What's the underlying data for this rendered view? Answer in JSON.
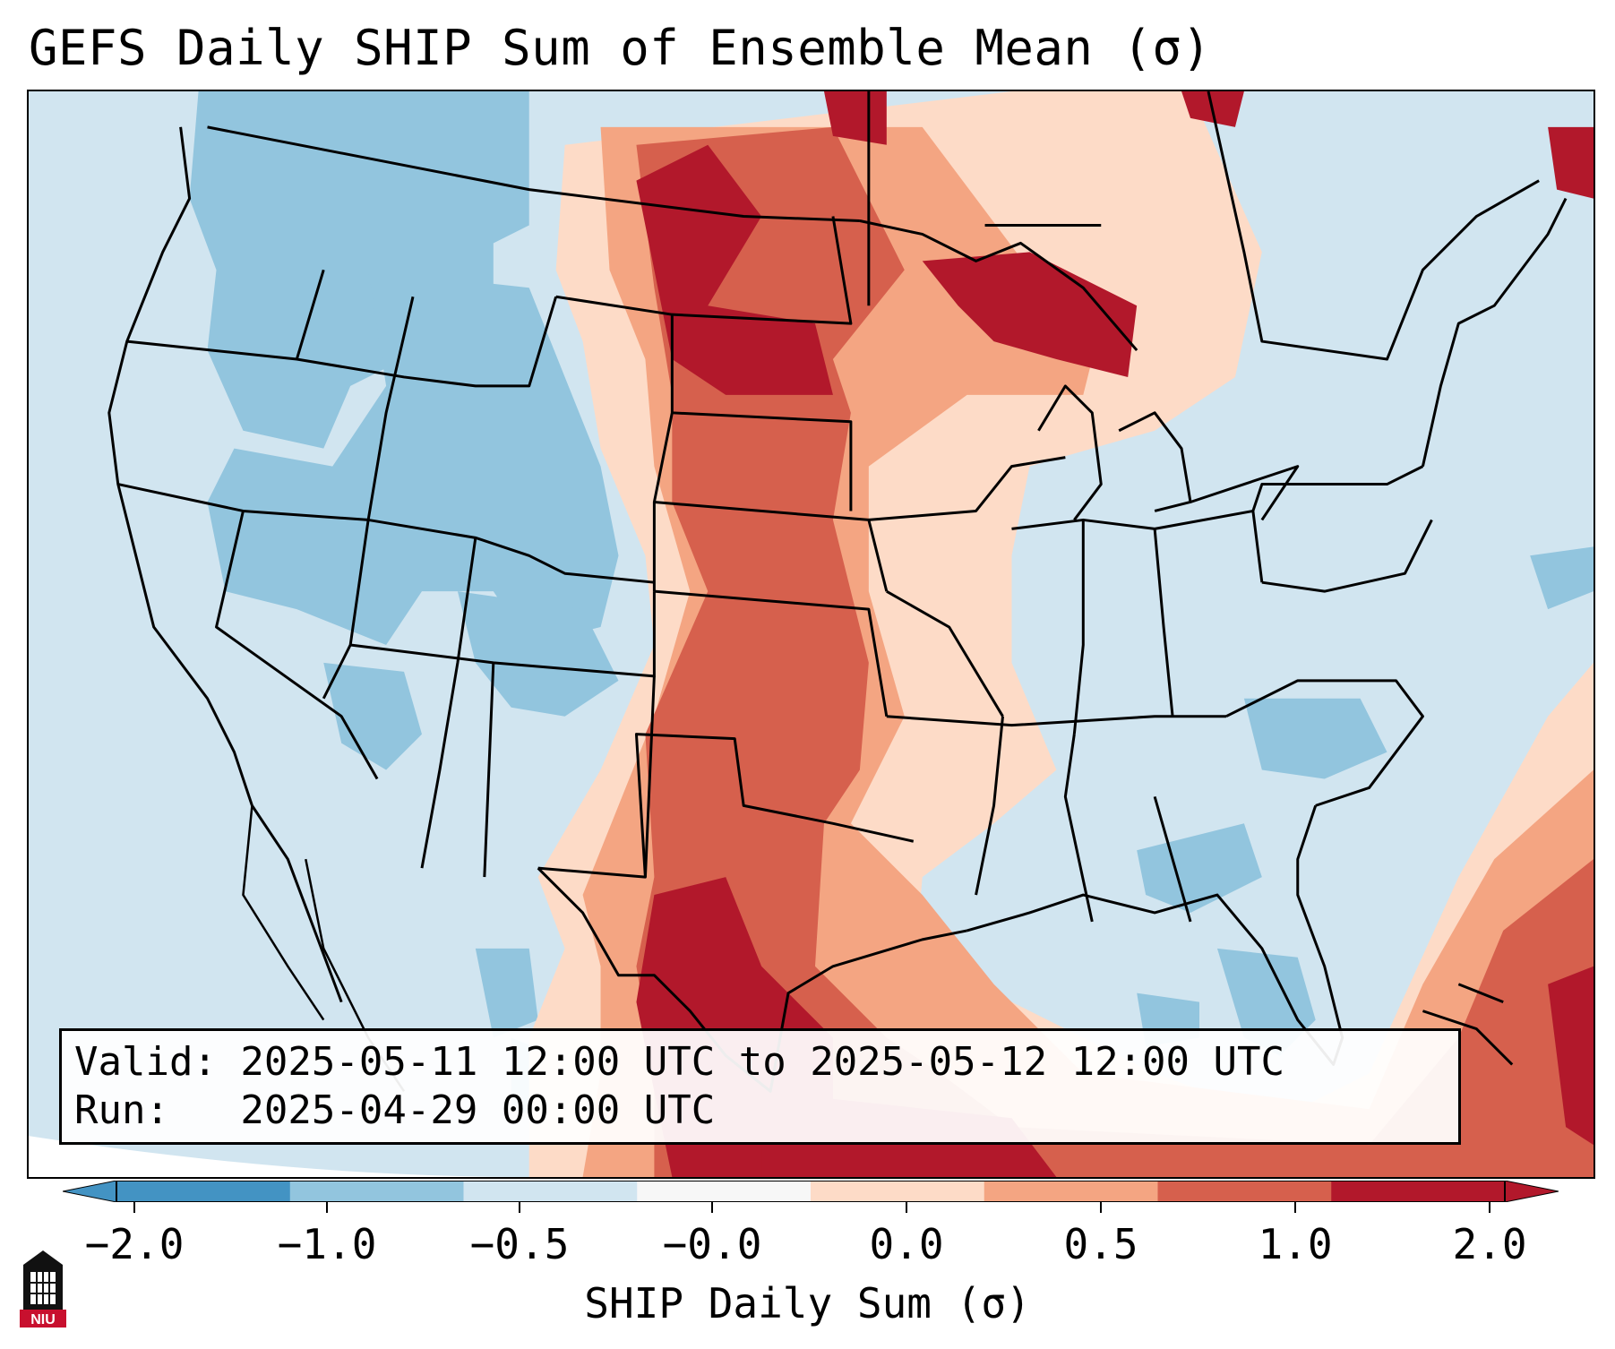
{
  "title": "GEFS Daily SHIP Sum of Ensemble Mean (σ)",
  "info": {
    "valid_line": "Valid: 2025-05-11 12:00 UTC to 2025-05-12 12:00 UTC",
    "run_line": "Run:   2025-04-29 00:00 UTC"
  },
  "colorbar": {
    "label": "SHIP Daily Sum (σ)",
    "tick_labels": [
      "−2.0",
      "−1.0",
      "−0.5",
      "−0.0",
      "0.0",
      "0.5",
      "1.0",
      "2.0"
    ],
    "bin_colors": [
      "#4393c3",
      "#92c5de",
      "#d1e5f0",
      "#f7f7f7",
      "#fddbc7",
      "#f4a582",
      "#d6604d",
      "#b2182b"
    ],
    "extend": "both"
  },
  "logo": {
    "text": "NIU"
  },
  "map": {
    "region": "Contiguous United States",
    "ocean_color": "#d1e5f0",
    "outline_color": "#000000"
  }
}
